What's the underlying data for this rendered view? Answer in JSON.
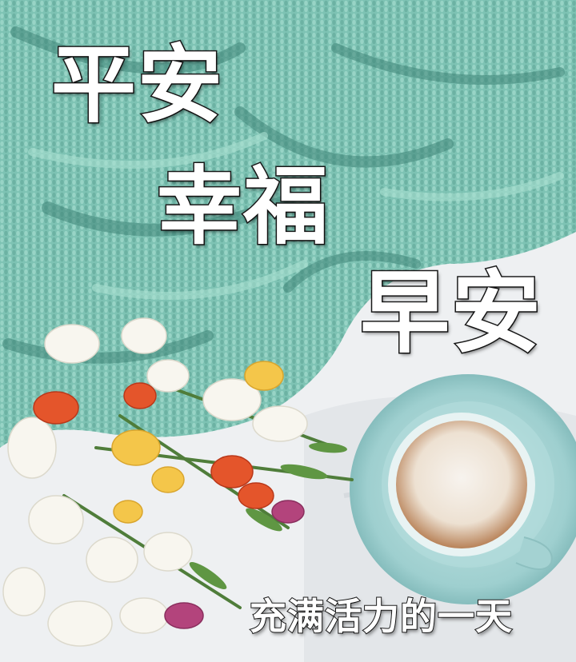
{
  "greeting": {
    "line1": "平安",
    "line2": "幸福",
    "line3": "早安",
    "line4": "充满活力的一天"
  },
  "colors": {
    "blanket": "#7ec3b4",
    "blanket_shadow": "#3f8578",
    "sheet": "#eef0f2",
    "saucer": "#a9d6d6",
    "coffee_foam": "#f1ebe3",
    "coffee_rim": "#9a6a45",
    "text_fill": "#ffffff",
    "text_outline": "#1a1a1a"
  }
}
